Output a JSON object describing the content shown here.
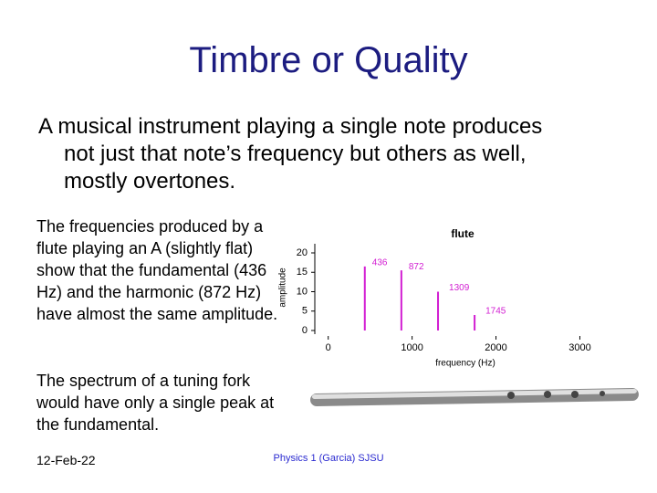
{
  "title": "Timbre or Quality",
  "bullet": "A musical instrument playing a single note produces not just that note’s frequency but others as well, mostly overtones.",
  "paragraphs": [
    "The frequencies produced by a flute playing an A (slightly flat) show that the fundamental (436 Hz) and the harmonic (872 Hz) have almost the same amplitude.",
    "The spectrum of a tuning fork would have only a single peak at the fundamental."
  ],
  "footer": {
    "date": "12-Feb-22",
    "center": "Physics 1 (Garcia) SJSU"
  },
  "chart_data": {
    "type": "stem",
    "title": "flute",
    "x_label": "frequency (Hz)",
    "y_label": "amplitude",
    "x": [
      436,
      872,
      1309,
      1745
    ],
    "values": [
      16.5,
      15.5,
      10,
      4
    ],
    "color": "#d21ed2",
    "xlim": [
      -160,
      3800
    ],
    "ylim": [
      0,
      20
    ],
    "xticks": [
      0,
      1000,
      2000,
      3000
    ],
    "yticks": [
      0,
      5,
      10,
      15,
      20
    ]
  }
}
